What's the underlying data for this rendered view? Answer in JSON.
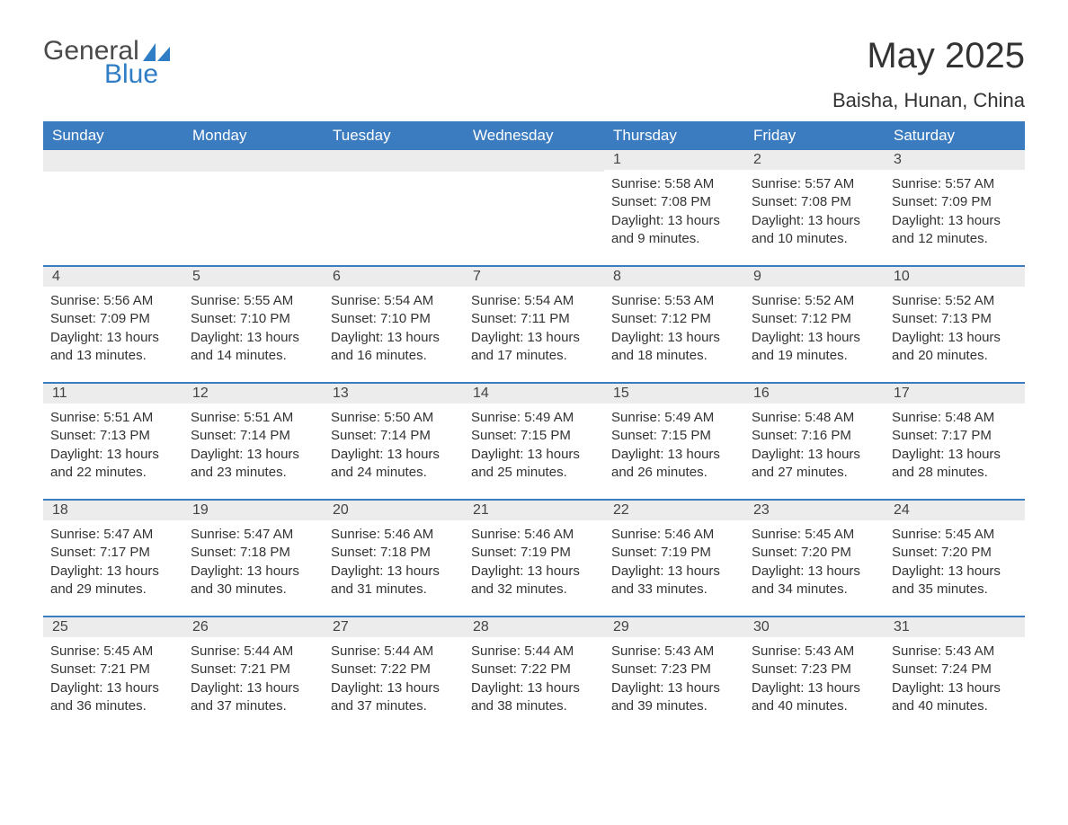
{
  "logo": {
    "text1": "General",
    "text2": "Blue",
    "icon_color": "#2f7dc4"
  },
  "title": "May 2025",
  "location": "Baisha, Hunan, China",
  "colors": {
    "header_bg": "#3b7bbf",
    "header_text": "#ffffff",
    "day_number_bg": "#ececec",
    "border": "#3b7bbf",
    "text": "#333333"
  },
  "fonts": {
    "title_size": 40,
    "location_size": 22,
    "header_size": 17,
    "body_size": 15
  },
  "day_names": [
    "Sunday",
    "Monday",
    "Tuesday",
    "Wednesday",
    "Thursday",
    "Friday",
    "Saturday"
  ],
  "weeks": [
    [
      null,
      null,
      null,
      null,
      {
        "n": "1",
        "sunrise": "5:58 AM",
        "sunset": "7:08 PM",
        "dl": "13 hours and 9 minutes."
      },
      {
        "n": "2",
        "sunrise": "5:57 AM",
        "sunset": "7:08 PM",
        "dl": "13 hours and 10 minutes."
      },
      {
        "n": "3",
        "sunrise": "5:57 AM",
        "sunset": "7:09 PM",
        "dl": "13 hours and 12 minutes."
      }
    ],
    [
      {
        "n": "4",
        "sunrise": "5:56 AM",
        "sunset": "7:09 PM",
        "dl": "13 hours and 13 minutes."
      },
      {
        "n": "5",
        "sunrise": "5:55 AM",
        "sunset": "7:10 PM",
        "dl": "13 hours and 14 minutes."
      },
      {
        "n": "6",
        "sunrise": "5:54 AM",
        "sunset": "7:10 PM",
        "dl": "13 hours and 16 minutes."
      },
      {
        "n": "7",
        "sunrise": "5:54 AM",
        "sunset": "7:11 PM",
        "dl": "13 hours and 17 minutes."
      },
      {
        "n": "8",
        "sunrise": "5:53 AM",
        "sunset": "7:12 PM",
        "dl": "13 hours and 18 minutes."
      },
      {
        "n": "9",
        "sunrise": "5:52 AM",
        "sunset": "7:12 PM",
        "dl": "13 hours and 19 minutes."
      },
      {
        "n": "10",
        "sunrise": "5:52 AM",
        "sunset": "7:13 PM",
        "dl": "13 hours and 20 minutes."
      }
    ],
    [
      {
        "n": "11",
        "sunrise": "5:51 AM",
        "sunset": "7:13 PM",
        "dl": "13 hours and 22 minutes."
      },
      {
        "n": "12",
        "sunrise": "5:51 AM",
        "sunset": "7:14 PM",
        "dl": "13 hours and 23 minutes."
      },
      {
        "n": "13",
        "sunrise": "5:50 AM",
        "sunset": "7:14 PM",
        "dl": "13 hours and 24 minutes."
      },
      {
        "n": "14",
        "sunrise": "5:49 AM",
        "sunset": "7:15 PM",
        "dl": "13 hours and 25 minutes."
      },
      {
        "n": "15",
        "sunrise": "5:49 AM",
        "sunset": "7:15 PM",
        "dl": "13 hours and 26 minutes."
      },
      {
        "n": "16",
        "sunrise": "5:48 AM",
        "sunset": "7:16 PM",
        "dl": "13 hours and 27 minutes."
      },
      {
        "n": "17",
        "sunrise": "5:48 AM",
        "sunset": "7:17 PM",
        "dl": "13 hours and 28 minutes."
      }
    ],
    [
      {
        "n": "18",
        "sunrise": "5:47 AM",
        "sunset": "7:17 PM",
        "dl": "13 hours and 29 minutes."
      },
      {
        "n": "19",
        "sunrise": "5:47 AM",
        "sunset": "7:18 PM",
        "dl": "13 hours and 30 minutes."
      },
      {
        "n": "20",
        "sunrise": "5:46 AM",
        "sunset": "7:18 PM",
        "dl": "13 hours and 31 minutes."
      },
      {
        "n": "21",
        "sunrise": "5:46 AM",
        "sunset": "7:19 PM",
        "dl": "13 hours and 32 minutes."
      },
      {
        "n": "22",
        "sunrise": "5:46 AM",
        "sunset": "7:19 PM",
        "dl": "13 hours and 33 minutes."
      },
      {
        "n": "23",
        "sunrise": "5:45 AM",
        "sunset": "7:20 PM",
        "dl": "13 hours and 34 minutes."
      },
      {
        "n": "24",
        "sunrise": "5:45 AM",
        "sunset": "7:20 PM",
        "dl": "13 hours and 35 minutes."
      }
    ],
    [
      {
        "n": "25",
        "sunrise": "5:45 AM",
        "sunset": "7:21 PM",
        "dl": "13 hours and 36 minutes."
      },
      {
        "n": "26",
        "sunrise": "5:44 AM",
        "sunset": "7:21 PM",
        "dl": "13 hours and 37 minutes."
      },
      {
        "n": "27",
        "sunrise": "5:44 AM",
        "sunset": "7:22 PM",
        "dl": "13 hours and 37 minutes."
      },
      {
        "n": "28",
        "sunrise": "5:44 AM",
        "sunset": "7:22 PM",
        "dl": "13 hours and 38 minutes."
      },
      {
        "n": "29",
        "sunrise": "5:43 AM",
        "sunset": "7:23 PM",
        "dl": "13 hours and 39 minutes."
      },
      {
        "n": "30",
        "sunrise": "5:43 AM",
        "sunset": "7:23 PM",
        "dl": "13 hours and 40 minutes."
      },
      {
        "n": "31",
        "sunrise": "5:43 AM",
        "sunset": "7:24 PM",
        "dl": "13 hours and 40 minutes."
      }
    ]
  ],
  "labels": {
    "sunrise": "Sunrise:",
    "sunset": "Sunset:",
    "daylight": "Daylight:"
  }
}
